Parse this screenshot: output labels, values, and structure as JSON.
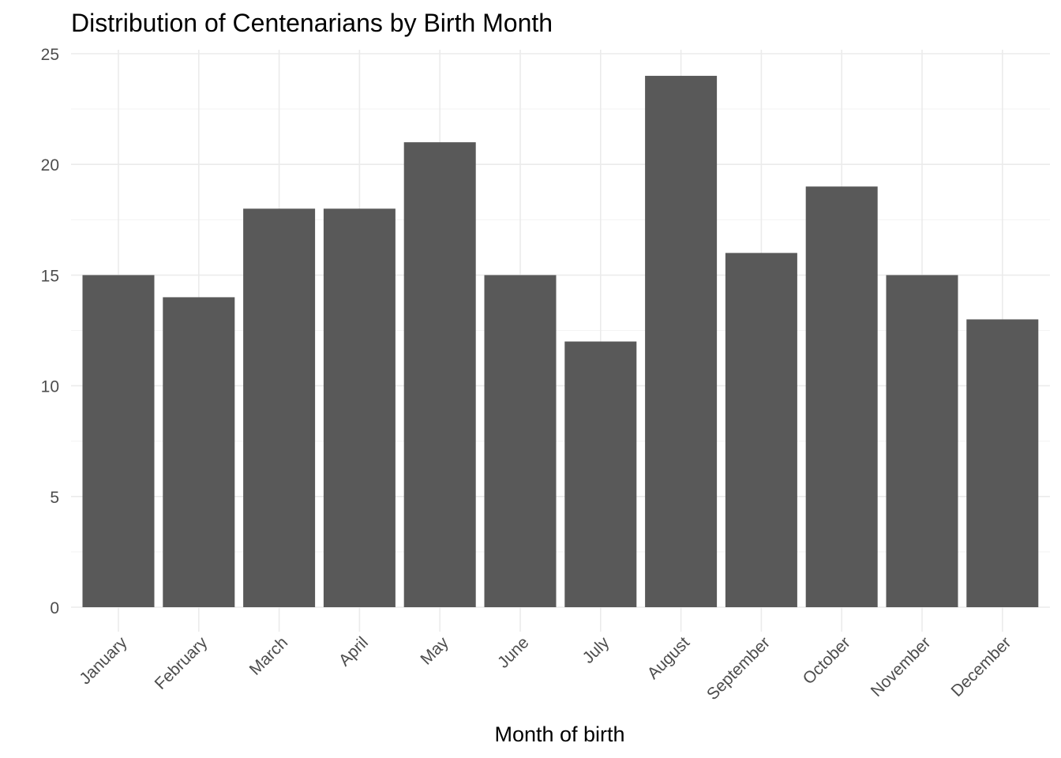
{
  "chart_data": {
    "type": "bar",
    "title": "Distribution of Centenarians by Birth Month",
    "xlabel": "Month of birth",
    "ylabel": "",
    "categories": [
      "January",
      "February",
      "March",
      "April",
      "May",
      "June",
      "July",
      "August",
      "September",
      "October",
      "November",
      "December"
    ],
    "values": [
      15,
      14,
      18,
      18,
      21,
      15,
      12,
      24,
      16,
      19,
      15,
      13
    ],
    "ylim": [
      0,
      25
    ],
    "yticks": [
      0,
      5,
      10,
      15,
      20,
      25
    ],
    "grid": true,
    "legend": "none",
    "bar_color": "#595959"
  }
}
